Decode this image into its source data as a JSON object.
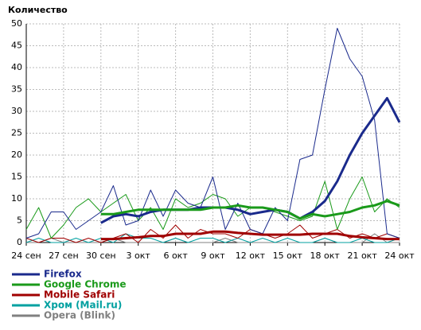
{
  "chart_data": {
    "type": "line",
    "title": "Количество",
    "categories": [
      "24 сен",
      null,
      null,
      "27 сен",
      null,
      null,
      "30 сен",
      null,
      null,
      "3 окт",
      null,
      null,
      "6 окт",
      null,
      null,
      "9 окт",
      null,
      null,
      "12 окт",
      null,
      null,
      "15 окт",
      null,
      null,
      "18 окт",
      null,
      null,
      "21 окт",
      null,
      null,
      "24 окт"
    ],
    "ylim": [
      0,
      50
    ],
    "yticks": [
      0,
      5,
      10,
      15,
      20,
      25,
      30,
      35,
      40,
      45,
      50
    ],
    "grid": true,
    "series": [
      {
        "name": "Firefox",
        "color": "#1a2a8c",
        "values": [
          1,
          2,
          7,
          7,
          3,
          5,
          7,
          13,
          4,
          5,
          12,
          6,
          12,
          9,
          8,
          15,
          3,
          9,
          3,
          2,
          8,
          5,
          19,
          20,
          35,
          49,
          42,
          38,
          28,
          2,
          1
        ],
        "trend": [
          null,
          null,
          null,
          null,
          null,
          null,
          4.5,
          6,
          6.5,
          6,
          7,
          7.5,
          7.5,
          7.5,
          8,
          8,
          8,
          7.5,
          6.5,
          7,
          7.5,
          7,
          5.5,
          7,
          9.5,
          14,
          20,
          25,
          29,
          33,
          27.5
        ]
      },
      {
        "name": "Google Chrome",
        "color": "#1a9a1a",
        "values": [
          3,
          8,
          1,
          4,
          8,
          10,
          7,
          9,
          11,
          5,
          8,
          3,
          10,
          8,
          9,
          11,
          10,
          6,
          8,
          8,
          7,
          6,
          5,
          6,
          14,
          3,
          10,
          15,
          7,
          10,
          8
        ],
        "trend": [
          null,
          null,
          null,
          null,
          null,
          null,
          6.5,
          6.5,
          7,
          7.5,
          7.5,
          7.5,
          7.5,
          7.5,
          7.5,
          8,
          8,
          8.5,
          8,
          8,
          7.5,
          7,
          5.5,
          6.5,
          6,
          6.5,
          7,
          8,
          8.5,
          9.5,
          8.5
        ]
      },
      {
        "name": "Mobile Safari",
        "color": "#a00000",
        "values": [
          1,
          0,
          1,
          1,
          0,
          1,
          0,
          1,
          2,
          0,
          3,
          1,
          4,
          1,
          3,
          2,
          2,
          1,
          3,
          2,
          1,
          2,
          4,
          1,
          2,
          3,
          1,
          2,
          1,
          2,
          1
        ],
        "trend": [
          null,
          null,
          null,
          null,
          null,
          null,
          0.8,
          0.8,
          1,
          1.2,
          1.5,
          1.5,
          2,
          2,
          2,
          2.5,
          2.5,
          2.2,
          2,
          1.8,
          1.8,
          1.8,
          1.8,
          2,
          2,
          2,
          1.5,
          1.2,
          1,
          0.8,
          0.8
        ]
      },
      {
        "name": "Хром (Mail.ru)",
        "color": "#00a0a0",
        "values": [
          0,
          1,
          0,
          0,
          1,
          0,
          1,
          0,
          2,
          1,
          1,
          0,
          1,
          0,
          1,
          1,
          0,
          1,
          0,
          1,
          0,
          1,
          0,
          0,
          1,
          0,
          0,
          1,
          0,
          0,
          1
        ]
      },
      {
        "name": "Opera (Blink)",
        "color": "#808080",
        "values": [
          0,
          0,
          1,
          0,
          0,
          0,
          0,
          1,
          0,
          0,
          0,
          0,
          1,
          0,
          0,
          0,
          1,
          0,
          0,
          0,
          0,
          0,
          0,
          0,
          1,
          0,
          0,
          0,
          2,
          0,
          0
        ]
      }
    ]
  }
}
